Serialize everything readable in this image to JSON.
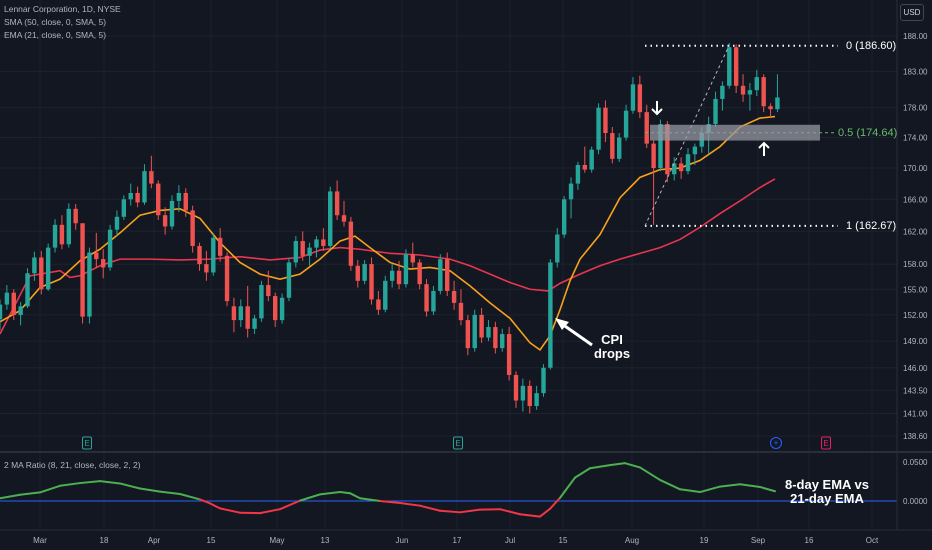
{
  "legend": {
    "symbol": "Lennar Corporation, 1D, NYSE",
    "sma": "SMA (50, close, 0, SMA, 5)",
    "ema": "EMA (21, close, 0, SMA, 5)"
  },
  "currency_button": "USD",
  "oscillator_title": "2 MA Ratio (8, 21, close, close, 2, 2)",
  "annotations": {
    "cpi_line1": "CPI",
    "cpi_line2": "drops",
    "ratio_line1": "8-day EMA vs",
    "ratio_line2": "21-day EMA"
  },
  "fib_labels": {
    "top": "0 (186.60)",
    "mid": "0.5 (174.64)",
    "bottom": "1 (162.67)"
  },
  "colors": {
    "background": "#131722",
    "up": "#26a69a",
    "down": "#ef5350",
    "sma": "#e8364f",
    "ema": "#f7a21b",
    "ratio_pos": "#4caf50",
    "ratio_neg": "#f23645",
    "zero_line": "#2962ff",
    "fib_mid": "#66bb6a"
  },
  "chart_data": {
    "type": "candlestick",
    "price_axis": {
      "ticks": [
        188.0,
        183.0,
        178.0,
        174.0,
        170.0,
        166.0,
        162.0,
        158.0,
        155.0,
        152.0,
        149.0,
        146.0,
        143.5,
        141.0,
        138.6
      ],
      "tick_labels": [
        "188.00",
        "183.00",
        "178.00",
        "174.00",
        "170.00",
        "166.00",
        "162.00",
        "158.00",
        "155.00",
        "152.00",
        "149.00",
        "146.00",
        "143.50",
        "141.00",
        "138.60"
      ],
      "scale": "log"
    },
    "x_axis": {
      "labels": [
        "Mar",
        "18",
        "Apr",
        "15",
        "May",
        "13",
        "Jun",
        "17",
        "Jul",
        "15",
        "Aug",
        "19",
        "Sep",
        "16",
        "Oct"
      ]
    },
    "oscillator_axis": {
      "ticks": [
        0.05,
        0.0
      ],
      "tick_labels": [
        "0.0500",
        "0.0000"
      ]
    },
    "earnings_markers": [
      "E",
      "E",
      "E"
    ],
    "dividend_marker": "+",
    "fibonacci": {
      "levels": [
        0,
        0.5,
        1
      ],
      "prices": [
        186.6,
        174.64,
        162.67
      ]
    },
    "candles": [
      [
        151.5,
        153.8,
        150.2,
        153.2
      ],
      [
        153.2,
        155.5,
        152.6,
        154.6
      ],
      [
        154.6,
        155.0,
        151.4,
        152.0
      ],
      [
        152.0,
        153.5,
        150.8,
        153.0
      ],
      [
        153.0,
        157.5,
        152.8,
        156.9
      ],
      [
        156.9,
        159.5,
        156.0,
        158.8
      ],
      [
        158.8,
        159.6,
        154.4,
        155.0
      ],
      [
        155.0,
        160.5,
        154.8,
        160.0
      ],
      [
        160.0,
        163.5,
        159.4,
        162.8
      ],
      [
        162.8,
        164.0,
        159.8,
        160.4
      ],
      [
        160.4,
        165.5,
        160.0,
        164.8
      ],
      [
        164.8,
        165.4,
        162.2,
        163.0
      ],
      [
        163.0,
        162.8,
        151.0,
        151.8
      ],
      [
        151.8,
        160.0,
        151.0,
        159.4
      ],
      [
        159.4,
        161.8,
        157.6,
        158.6
      ],
      [
        158.6,
        159.8,
        156.3,
        157.6
      ],
      [
        157.6,
        162.8,
        157.2,
        162.2
      ],
      [
        162.2,
        164.6,
        161.4,
        163.8
      ],
      [
        163.8,
        166.5,
        163.4,
        166.0
      ],
      [
        166.0,
        168.0,
        165.2,
        166.8
      ],
      [
        166.8,
        167.6,
        165.0,
        165.6
      ],
      [
        165.6,
        170.5,
        165.3,
        169.6
      ],
      [
        169.6,
        171.6,
        167.4,
        168.0
      ],
      [
        168.0,
        168.4,
        163.4,
        164.0
      ],
      [
        164.0,
        165.0,
        161.6,
        162.6
      ],
      [
        162.6,
        166.5,
        162.2,
        165.8
      ],
      [
        165.8,
        167.8,
        164.4,
        166.8
      ],
      [
        166.8,
        167.4,
        163.8,
        164.6
      ],
      [
        164.6,
        165.2,
        159.4,
        160.2
      ],
      [
        160.2,
        160.6,
        157.2,
        158.0
      ],
      [
        158.0,
        159.6,
        156.0,
        157.0
      ],
      [
        157.0,
        161.8,
        156.6,
        161.2
      ],
      [
        161.2,
        162.4,
        158.3,
        159.0
      ],
      [
        159.0,
        159.4,
        153.0,
        153.6
      ],
      [
        153.0,
        154.0,
        150.0,
        151.4
      ],
      [
        151.4,
        153.8,
        150.6,
        153.0
      ],
      [
        153.0,
        155.4,
        149.4,
        150.4
      ],
      [
        150.4,
        152.0,
        149.8,
        151.6
      ],
      [
        151.6,
        156.0,
        151.2,
        155.5
      ],
      [
        155.5,
        157.2,
        153.6,
        154.2
      ],
      [
        154.2,
        154.6,
        150.6,
        151.4
      ],
      [
        151.4,
        154.5,
        151.0,
        154.0
      ],
      [
        154.0,
        158.8,
        153.6,
        158.2
      ],
      [
        158.2,
        161.4,
        157.6,
        160.8
      ],
      [
        160.8,
        162.0,
        158.4,
        159.0
      ],
      [
        159.0,
        160.6,
        157.8,
        160.0
      ],
      [
        160.0,
        161.4,
        158.8,
        161.0
      ],
      [
        161.0,
        162.4,
        159.6,
        160.2
      ],
      [
        160.2,
        167.6,
        159.8,
        167.0
      ],
      [
        167.0,
        168.4,
        163.4,
        164.0
      ],
      [
        164.0,
        165.8,
        162.6,
        163.2
      ],
      [
        163.2,
        163.8,
        157.2,
        157.8
      ],
      [
        157.8,
        158.5,
        155.2,
        156.0
      ],
      [
        156.0,
        158.5,
        155.6,
        158.0
      ],
      [
        158.0,
        158.8,
        153.2,
        153.8
      ],
      [
        153.8,
        154.8,
        152.0,
        152.6
      ],
      [
        152.6,
        156.6,
        152.3,
        156.0
      ],
      [
        156.0,
        158.0,
        155.2,
        157.2
      ],
      [
        157.2,
        158.4,
        155.0,
        155.6
      ],
      [
        155.6,
        159.8,
        155.2,
        159.2
      ],
      [
        159.2,
        160.6,
        157.6,
        158.2
      ],
      [
        158.2,
        158.6,
        155.0,
        155.6
      ],
      [
        155.6,
        156.2,
        151.8,
        152.4
      ],
      [
        152.4,
        155.4,
        152.0,
        154.8
      ],
      [
        154.8,
        159.2,
        154.4,
        158.6
      ],
      [
        158.6,
        159.4,
        154.2,
        154.8
      ],
      [
        154.8,
        156.0,
        152.6,
        153.4
      ],
      [
        153.4,
        155.0,
        150.8,
        151.4
      ],
      [
        151.4,
        152.0,
        147.4,
        148.2
      ],
      [
        148.2,
        152.6,
        147.8,
        152.0
      ],
      [
        152.0,
        152.8,
        148.8,
        149.4
      ],
      [
        149.4,
        151.4,
        149.0,
        150.6
      ],
      [
        150.6,
        151.2,
        147.6,
        148.2
      ],
      [
        148.2,
        150.4,
        147.8,
        149.8
      ],
      [
        149.8,
        150.6,
        144.6,
        145.2
      ],
      [
        145.2,
        145.6,
        141.6,
        142.4
      ],
      [
        142.4,
        144.8,
        141.2,
        144.0
      ],
      [
        144.0,
        144.6,
        141.0,
        141.8
      ],
      [
        141.8,
        144.0,
        141.4,
        143.2
      ],
      [
        143.2,
        146.4,
        142.8,
        146.0
      ],
      [
        146.0,
        158.6,
        145.8,
        158.2
      ],
      [
        158.2,
        162.4,
        157.6,
        161.6
      ],
      [
        161.6,
        166.4,
        161.2,
        166.0
      ],
      [
        166.0,
        168.8,
        163.6,
        168.0
      ],
      [
        168.0,
        170.8,
        167.2,
        170.4
      ],
      [
        170.4,
        172.8,
        169.4,
        169.8
      ],
      [
        169.8,
        172.8,
        169.4,
        172.4
      ],
      [
        172.4,
        178.6,
        171.8,
        178.0
      ],
      [
        178.0,
        179.0,
        173.4,
        174.6
      ],
      [
        174.6,
        175.4,
        170.6,
        171.2
      ],
      [
        171.2,
        174.6,
        170.8,
        174.0
      ],
      [
        174.0,
        178.4,
        173.6,
        177.6
      ],
      [
        177.6,
        182.2,
        177.2,
        181.2
      ],
      [
        181.2,
        182.4,
        176.6,
        177.4
      ],
      [
        177.4,
        178.4,
        172.6,
        173.2
      ],
      [
        173.2,
        173.6,
        162.8,
        170.0
      ],
      [
        170.0,
        176.4,
        169.6,
        175.8
      ],
      [
        175.8,
        176.2,
        168.2,
        169.2
      ],
      [
        169.2,
        171.4,
        168.4,
        170.6
      ],
      [
        170.6,
        171.4,
        168.6,
        169.6
      ],
      [
        169.6,
        172.6,
        169.2,
        171.8
      ],
      [
        171.8,
        173.2,
        170.4,
        172.8
      ],
      [
        172.8,
        175.4,
        172.0,
        174.6
      ],
      [
        174.6,
        176.8,
        171.8,
        175.8
      ],
      [
        175.8,
        180.2,
        175.4,
        179.2
      ],
      [
        179.2,
        181.6,
        177.6,
        181.0
      ],
      [
        181.0,
        187.0,
        180.6,
        186.4
      ],
      [
        186.4,
        186.8,
        180.0,
        181.0
      ],
      [
        181.0,
        182.6,
        178.8,
        179.8
      ],
      [
        179.8,
        181.4,
        177.6,
        180.4
      ],
      [
        180.4,
        183.2,
        179.6,
        182.2
      ],
      [
        182.2,
        182.6,
        177.4,
        178.2
      ],
      [
        178.2,
        178.6,
        176.6,
        177.8
      ],
      [
        177.8,
        182.6,
        177.4,
        179.4
      ]
    ],
    "sma_50": [
      [
        0,
        149.8
      ],
      [
        30,
        156.6
      ],
      [
        60,
        157.2
      ],
      [
        70,
        156.4
      ],
      [
        80,
        156.6
      ],
      [
        100,
        157.8
      ],
      [
        120,
        158.6
      ],
      [
        150,
        158.6
      ],
      [
        180,
        158.5
      ],
      [
        210,
        158.6
      ],
      [
        240,
        158.9
      ],
      [
        270,
        158.5
      ],
      [
        300,
        158.8
      ],
      [
        320,
        159.7
      ],
      [
        340,
        160.0
      ],
      [
        360,
        159.8
      ],
      [
        390,
        159.3
      ],
      [
        420,
        159.1
      ],
      [
        450,
        158.6
      ],
      [
        470,
        157.8
      ],
      [
        490,
        156.8
      ],
      [
        510,
        155.8
      ],
      [
        530,
        155.0
      ],
      [
        548,
        154.8
      ],
      [
        560,
        155.7
      ],
      [
        580,
        156.8
      ],
      [
        600,
        157.8
      ],
      [
        620,
        158.6
      ],
      [
        640,
        159.3
      ],
      [
        660,
        160.0
      ],
      [
        680,
        161.0
      ],
      [
        700,
        162.5
      ],
      [
        720,
        164.2
      ],
      [
        740,
        165.8
      ],
      [
        760,
        167.5
      ],
      [
        775,
        168.6
      ]
    ],
    "ema_21": [
      [
        0,
        151.2
      ],
      [
        20,
        152.5
      ],
      [
        40,
        155.2
      ],
      [
        60,
        156.2
      ],
      [
        80,
        158.4
      ],
      [
        100,
        159.8
      ],
      [
        120,
        161.8
      ],
      [
        140,
        164.0
      ],
      [
        160,
        164.6
      ],
      [
        180,
        164.8
      ],
      [
        200,
        163.6
      ],
      [
        220,
        160.6
      ],
      [
        240,
        158.2
      ],
      [
        260,
        156.8
      ],
      [
        280,
        156.2
      ],
      [
        300,
        156.8
      ],
      [
        320,
        158.6
      ],
      [
        340,
        160.8
      ],
      [
        355,
        161.4
      ],
      [
        370,
        160.0
      ],
      [
        390,
        158.2
      ],
      [
        410,
        157.4
      ],
      [
        430,
        157.6
      ],
      [
        450,
        157.2
      ],
      [
        470,
        155.4
      ],
      [
        490,
        153.4
      ],
      [
        510,
        151.6
      ],
      [
        530,
        148.8
      ],
      [
        540,
        148.0
      ],
      [
        550,
        149.6
      ],
      [
        560,
        152.6
      ],
      [
        570,
        156.0
      ],
      [
        580,
        158.6
      ],
      [
        600,
        161.6
      ],
      [
        620,
        166.2
      ],
      [
        640,
        168.8
      ],
      [
        660,
        169.8
      ],
      [
        680,
        170.0
      ],
      [
        700,
        171.0
      ],
      [
        720,
        172.8
      ],
      [
        740,
        175.4
      ],
      [
        760,
        176.6
      ],
      [
        775,
        176.8
      ]
    ],
    "ratio": [
      [
        0,
        0.0035
      ],
      [
        20,
        0.008
      ],
      [
        40,
        0.011
      ],
      [
        60,
        0.0195
      ],
      [
        80,
        0.023
      ],
      [
        100,
        0.0255
      ],
      [
        120,
        0.0225
      ],
      [
        140,
        0.016
      ],
      [
        160,
        0.012
      ],
      [
        180,
        0.009
      ],
      [
        200,
        0.002
      ],
      [
        210,
        -0.003
      ],
      [
        220,
        -0.0095
      ],
      [
        240,
        -0.015
      ],
      [
        260,
        -0.0155
      ],
      [
        280,
        -0.0105
      ],
      [
        300,
        0.0005
      ],
      [
        320,
        0.0085
      ],
      [
        340,
        0.0115
      ],
      [
        350,
        0.01
      ],
      [
        360,
        0.0035
      ],
      [
        380,
        0.0
      ],
      [
        400,
        -0.0025
      ],
      [
        420,
        -0.006
      ],
      [
        440,
        -0.0125
      ],
      [
        460,
        -0.0145
      ],
      [
        480,
        -0.011
      ],
      [
        500,
        -0.0105
      ],
      [
        520,
        -0.017
      ],
      [
        540,
        -0.02
      ],
      [
        550,
        -0.01
      ],
      [
        560,
        0.004
      ],
      [
        575,
        0.03
      ],
      [
        590,
        0.042
      ],
      [
        610,
        0.046
      ],
      [
        625,
        0.0485
      ],
      [
        640,
        0.043
      ],
      [
        660,
        0.027
      ],
      [
        680,
        0.015
      ],
      [
        700,
        0.0115
      ],
      [
        720,
        0.0185
      ],
      [
        740,
        0.0215
      ],
      [
        760,
        0.018
      ],
      [
        775,
        0.0125
      ]
    ]
  }
}
